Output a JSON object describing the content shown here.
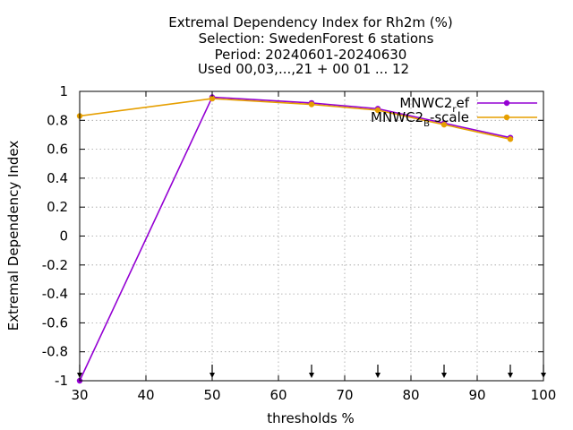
{
  "chart_data": {
    "type": "line",
    "title_lines": [
      "Extremal Dependency Index  for Rh2m (%)",
      "Selection: SwedenForest      6 stations",
      "Period: 20240601-20240630",
      "Used 00,03,...,21 + 00 01 ... 12"
    ],
    "xlabel": "thresholds %",
    "ylabel": "Extremal Dependency Index",
    "xlim": [
      30,
      100
    ],
    "ylim": [
      -1,
      1
    ],
    "x_ticks": [
      30,
      40,
      50,
      60,
      70,
      80,
      90,
      100
    ],
    "x_tick_labels": [
      "30",
      "40",
      "50",
      "60",
      "70",
      "80",
      "90",
      "100"
    ],
    "y_ticks": [
      -1,
      -0.8,
      -0.6,
      -0.4,
      -0.2,
      0,
      0.2,
      0.4,
      0.6,
      0.8,
      1
    ],
    "y_tick_labels": [
      "-1",
      "-0.8",
      "-0.6",
      "-0.4",
      "-0.2",
      "0",
      "0.2",
      "0.4",
      "0.6",
      "0.8",
      "1"
    ],
    "grid": true,
    "legend_position": "top-right",
    "series": [
      {
        "name": "MNWC2_ref",
        "legend_main": "MNWC2",
        "legend_sub": "r",
        "legend_rest": "ef",
        "color": "#9400d3",
        "x": [
          30,
          50,
          65,
          75,
          85,
          95
        ],
        "y": [
          -1.0,
          0.96,
          0.92,
          0.88,
          0.78,
          0.68
        ]
      },
      {
        "name": "MNWC2_B-scale",
        "legend_main": "MNWC2",
        "legend_sub": "B",
        "legend_rest": "-scale",
        "color": "#e69f00",
        "x": [
          30,
          50,
          65,
          75,
          85,
          95
        ],
        "y": [
          0.83,
          0.95,
          0.91,
          0.87,
          0.77,
          0.67
        ]
      }
    ],
    "threshold_markers_x": [
      30,
      50,
      65,
      75,
      85,
      95,
      100
    ]
  }
}
